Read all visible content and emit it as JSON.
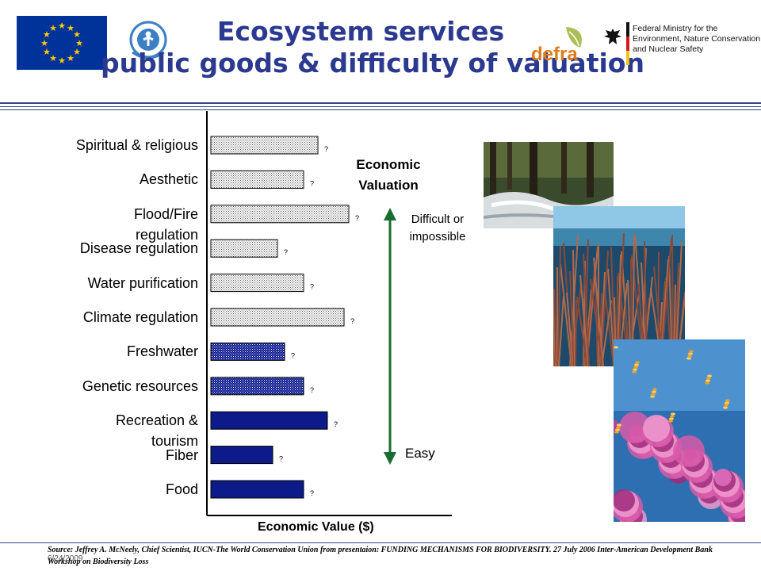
{
  "header": {
    "title_line1": "Ecosystem services",
    "title_line2": "public goods & difficulty of valuation",
    "ministry_text": "Federal Ministry for the Environment, Nature Conservation and Nuclear Safety",
    "ministry_line1": "Federal Ministry for the",
    "ministry_line2": "Environment, Nature Conservation",
    "ministry_line3": "and Nuclear Safety",
    "defra_logo_text": "defra"
  },
  "annotations": {
    "economic_valuation_line1": "Economic",
    "economic_valuation_line2": "Valuation",
    "difficult_line1": "Difficult or",
    "difficult_line2": "impossible",
    "easy": "Easy",
    "arrow_color": "#1a6b2f"
  },
  "footer": {
    "source": "Source: Jeffrey A. McNeely, Chief Scientist, IUCN-The World Conservation Union from presentaion: FUNDING MECHANISMS FOR BIODIVERSITY.  27 July 2006 Inter-American Development Bank Workshop on Biodiversity Loss",
    "date": "6/24/2009"
  },
  "colors": {
    "title": "#2b3a8f",
    "market_bar": "#0d1a8a",
    "nonmarket_bar": "#ffffff",
    "eu_flag": "#003399",
    "eu_star": "#ffcc00"
  },
  "chart_data": {
    "type": "bar",
    "orientation": "horizontal",
    "xlabel": "Economic Value ($)",
    "categories": [
      "Spiritual & religious",
      "Aesthetic",
      "Flood/Fire regulation",
      "Disease regulation",
      "Water purification",
      "Climate regulation",
      "Freshwater",
      "Genetic resources",
      "Recreation & tourism",
      "Fiber",
      "Food"
    ],
    "category_lines": [
      [
        "Spiritual & religious"
      ],
      [
        "Aesthetic"
      ],
      [
        "Flood/Fire",
        "regulation"
      ],
      [
        "Disease regulation"
      ],
      [
        "Water purification"
      ],
      [
        "Climate regulation"
      ],
      [
        "Freshwater"
      ],
      [
        "Genetic resources"
      ],
      [
        "Recreation &",
        "tourism"
      ],
      [
        "Fiber"
      ],
      [
        "Food"
      ]
    ],
    "values": [
      0.45,
      0.39,
      0.58,
      0.28,
      0.39,
      0.56,
      0.31,
      0.39,
      0.49,
      0.26,
      0.39
    ],
    "fill_styles": [
      "light-dotted",
      "light-dotted",
      "light-dotted",
      "light-dotted",
      "light-dotted",
      "light-dotted",
      "dark-dotted",
      "dark-dotted",
      "dark-solid",
      "dark-solid",
      "dark-solid"
    ],
    "data_labels": [
      "?",
      "?",
      "?",
      "?",
      "?",
      "?",
      "?",
      "?",
      "?",
      "?",
      "?"
    ],
    "xlim": [
      0,
      1
    ],
    "x_tick_labels": "none",
    "grid": false,
    "legend": "none"
  }
}
